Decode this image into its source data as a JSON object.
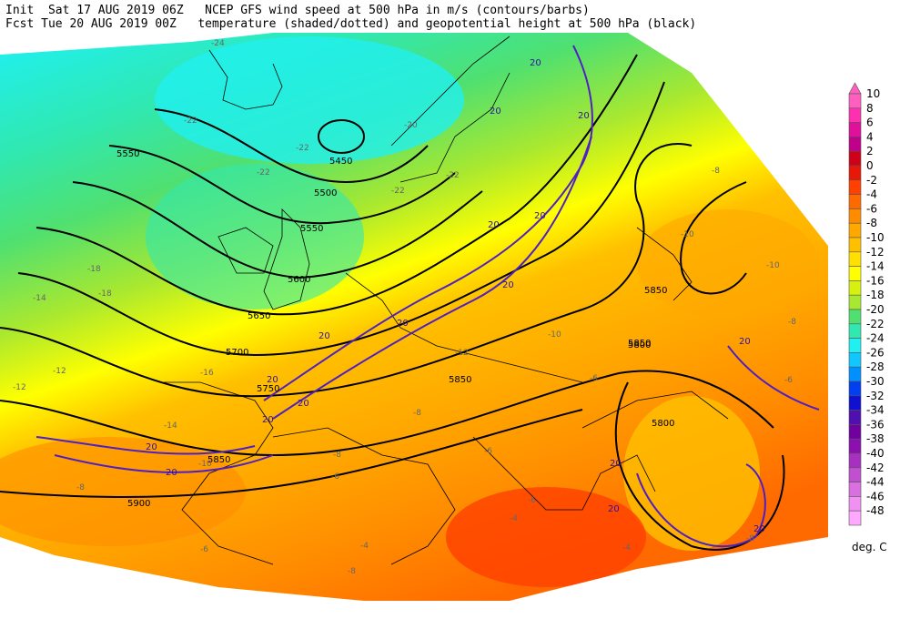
{
  "header": {
    "line1_left": "Init  Sat 17 AUG 2019 06Z",
    "line1_right": "NCEP GFS wind speed at 500 hPa in m/s (contours/barbs)",
    "line2_left": "Fcst Tue 20 AUG 2019 00Z",
    "line2_right": "temperature (shaded/dotted) and geopotential height at 500 hPa (black)"
  },
  "colorbar": {
    "unit": "deg. C",
    "levels": [
      "10",
      "8",
      "6",
      "4",
      "2",
      "0",
      "-2",
      "-4",
      "-6",
      "-8",
      "-10",
      "-12",
      "-14",
      "-16",
      "-18",
      "-20",
      "-22",
      "-24",
      "-26",
      "-28",
      "-30",
      "-32",
      "-34",
      "-36",
      "-38",
      "-40",
      "-42",
      "-44",
      "-46",
      "-48"
    ],
    "colors": [
      "#ff60c0",
      "#ff30b0",
      "#e0109a",
      "#c0008a",
      "#d00018",
      "#e81808",
      "#ff4000",
      "#ff6a00",
      "#ff8c00",
      "#ffa800",
      "#ffc000",
      "#ffe000",
      "#ffff00",
      "#d8f010",
      "#a8e830",
      "#50e070",
      "#30e8b0",
      "#20f0f0",
      "#10c8ff",
      "#0090ff",
      "#0040f0",
      "#1010d0",
      "#5010b0",
      "#7000a0",
      "#8c10b0",
      "#a830c0",
      "#c050d0",
      "#d870e0",
      "#f090f0",
      "#ffa8ff"
    ]
  },
  "height_labels": [
    "5450",
    "5500",
    "5550",
    "5550",
    "5600",
    "5650",
    "5700",
    "5750",
    "5800",
    "5850",
    "5850",
    "5850",
    "5800",
    "5850",
    "5900"
  ],
  "wind_labels": [
    "20",
    "20",
    "20",
    "20",
    "20",
    "20",
    "20",
    "20",
    "20",
    "20",
    "20",
    "20",
    "20",
    "20",
    "20",
    "20",
    "20"
  ],
  "temp_labels": [
    "-24",
    "-22",
    "-22",
    "-22",
    "-22",
    "-22",
    "-20",
    "-18",
    "-18",
    "-16",
    "-14",
    "-12",
    "-12",
    "-14",
    "-10",
    "-10",
    "-12",
    "-10",
    "-8",
    "-8",
    "-8",
    "-6",
    "-6",
    "-6",
    "-6",
    "-4",
    "-4",
    "-4",
    "-6",
    "-8",
    "-8",
    "-10",
    "-6",
    "-8",
    "-8"
  ]
}
